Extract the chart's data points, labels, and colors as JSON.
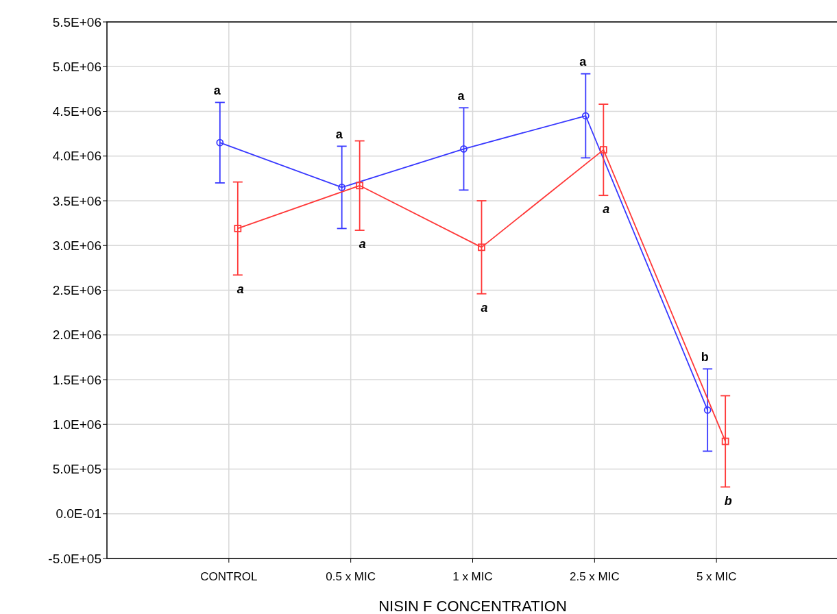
{
  "chart_data": {
    "type": "line",
    "xlabel": "NISIN F CONCENTRATION",
    "categories": [
      "CONTROL",
      "0.5 x MIC",
      "1 x MIC",
      "2.5 x MIC",
      "5 x MIC"
    ],
    "series": [
      {
        "color": "#3838ff",
        "marker": "circle",
        "values": [
          4150000,
          3650000,
          4080000,
          4450000,
          1160000
        ],
        "errors": [
          450000,
          460000,
          460000,
          470000,
          460000
        ]
      },
      {
        "color": "#ff3838",
        "marker": "square",
        "values": [
          3190000,
          3670000,
          2980000,
          4070000,
          810000
        ],
        "errors": [
          520000,
          500000,
          520000,
          510000,
          510000
        ]
      }
    ],
    "ylim": [
      -500000,
      5500000
    ],
    "yticks": [
      {
        "value": -500000,
        "label": "-5.0E+05"
      },
      {
        "value": 0,
        "label": "0.0E-01"
      },
      {
        "value": 500000,
        "label": "5.0E+05"
      },
      {
        "value": 1000000,
        "label": "1.0E+06"
      },
      {
        "value": 1500000,
        "label": "1.5E+06"
      },
      {
        "value": 2000000,
        "label": "2.0E+06"
      },
      {
        "value": 2500000,
        "label": "2.5E+06"
      },
      {
        "value": 3000000,
        "label": "3.0E+06"
      },
      {
        "value": 3500000,
        "label": "3.5E+06"
      },
      {
        "value": 4000000,
        "label": "4.0E+06"
      },
      {
        "value": 4500000,
        "label": "4.5E+06"
      },
      {
        "value": 5000000,
        "label": "5.0E+06"
      },
      {
        "value": 5500000,
        "label": "5.5E+06"
      }
    ],
    "grid": true,
    "annotations": [
      "a",
      "a",
      "a",
      "a",
      "b",
      "a",
      "a",
      "a",
      "a",
      "b"
    ]
  }
}
